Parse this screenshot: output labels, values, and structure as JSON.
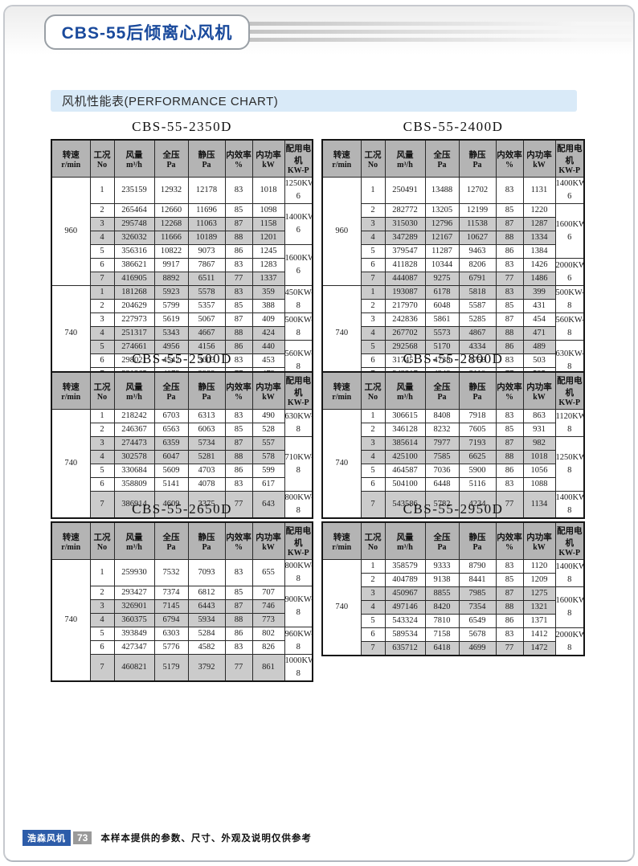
{
  "header": {
    "title": "CBS-55后倾离心风机"
  },
  "section": {
    "title": "风机性能表(PERFORMANCE CHART)"
  },
  "table_headers": [
    {
      "line1": "转速",
      "line2": "r/min"
    },
    {
      "line1": "工况",
      "line2": "No"
    },
    {
      "line1": "风量",
      "line2": "m³/h"
    },
    {
      "line1": "全压",
      "line2": "Pa"
    },
    {
      "line1": "静压",
      "line2": "Pa"
    },
    {
      "line1": "内效率",
      "line2": "%"
    },
    {
      "line1": "内功率",
      "line2": "kW"
    },
    {
      "line1": "配用电机",
      "line2": "KW-P"
    }
  ],
  "tables": [
    {
      "title": "CBS-55-2350D",
      "sections": [
        {
          "speed": "960",
          "rows": [
            [
              "1",
              "235159",
              "12932",
              "12178",
              "83",
              "1018"
            ],
            [
              "2",
              "265464",
              "12660",
              "11696",
              "85",
              "1098"
            ],
            [
              "3",
              "295748",
              "12268",
              "11063",
              "87",
              "1158"
            ],
            [
              "4",
              "326032",
              "11666",
              "10189",
              "88",
              "1201"
            ],
            [
              "5",
              "356316",
              "10822",
              "9073",
              "86",
              "1245"
            ],
            [
              "6",
              "386621",
              "9917",
              "7867",
              "83",
              "1283"
            ],
            [
              "7",
              "416905",
              "8892",
              "6511",
              "77",
              "1337"
            ]
          ],
          "motors": [
            {
              "label": "1250KW-6",
              "span": 1
            },
            {
              "label": "1400KW-6",
              "span": 3
            },
            {
              "label": "1600KW-6",
              "span": 3
            }
          ]
        },
        {
          "speed": "740",
          "rows": [
            [
              "1",
              "181268",
              "5923",
              "5578",
              "83",
              "359"
            ],
            [
              "2",
              "204629",
              "5799",
              "5357",
              "85",
              "388"
            ],
            [
              "3",
              "227973",
              "5619",
              "5067",
              "87",
              "409"
            ],
            [
              "4",
              "251317",
              "5343",
              "4667",
              "88",
              "424"
            ],
            [
              "5",
              "274661",
              "4956",
              "4156",
              "86",
              "440"
            ],
            [
              "6",
              "298021",
              "4542",
              "3603",
              "83",
              "453"
            ],
            [
              "7",
              "321365",
              "4073",
              "2982",
              "77",
              "472"
            ]
          ],
          "motors": [
            {
              "label": "450KW-8",
              "span": 2
            },
            {
              "label": "500KW-8",
              "span": 2
            },
            {
              "label": "560KW-8",
              "span": 3
            }
          ]
        }
      ]
    },
    {
      "title": "CBS-55-2400D",
      "sections": [
        {
          "speed": "960",
          "rows": [
            [
              "1",
              "250491",
              "13488",
              "12702",
              "83",
              "1131"
            ],
            [
              "2",
              "282772",
              "13205",
              "12199",
              "85",
              "1220"
            ],
            [
              "3",
              "315030",
              "12796",
              "11538",
              "87",
              "1287"
            ],
            [
              "4",
              "347289",
              "12167",
              "10627",
              "88",
              "1334"
            ],
            [
              "5",
              "379547",
              "11287",
              "9463",
              "86",
              "1384"
            ],
            [
              "6",
              "411828",
              "10344",
              "8206",
              "83",
              "1426"
            ],
            [
              "7",
              "444087",
              "9275",
              "6791",
              "77",
              "1486"
            ]
          ],
          "motors": [
            {
              "label": "1400KW-6",
              "span": 1
            },
            {
              "label": "1600KW-6",
              "span": 4
            },
            {
              "label": "2000KW-6",
              "span": 2
            }
          ]
        },
        {
          "speed": "740",
          "rows": [
            [
              "1",
              "193087",
              "6178",
              "5818",
              "83",
              "399"
            ],
            [
              "2",
              "217970",
              "6048",
              "5587",
              "85",
              "431"
            ],
            [
              "3",
              "242836",
              "5861",
              "5285",
              "87",
              "454"
            ],
            [
              "4",
              "267702",
              "5573",
              "4867",
              "88",
              "471"
            ],
            [
              "5",
              "292568",
              "5170",
              "4334",
              "86",
              "489"
            ],
            [
              "6",
              "317451",
              "4738",
              "3758",
              "83",
              "503"
            ],
            [
              "7",
              "342317",
              "4248",
              "3110",
              "77",
              "525"
            ]
          ],
          "motors": [
            {
              "label": "500KW-8",
              "span": 2
            },
            {
              "label": "560KW-8",
              "span": 2
            },
            {
              "label": "630KW-8",
              "span": 3
            }
          ]
        }
      ]
    },
    {
      "title": "CBS-55-2500D",
      "sections": [
        {
          "speed": "740",
          "rows": [
            [
              "1",
              "218242",
              "6703",
              "6313",
              "83",
              "490"
            ],
            [
              "2",
              "246367",
              "6563",
              "6063",
              "85",
              "528"
            ],
            [
              "3",
              "274473",
              "6359",
              "5734",
              "87",
              "557"
            ],
            [
              "4",
              "302578",
              "6047",
              "5281",
              "88",
              "578"
            ],
            [
              "5",
              "330684",
              "5609",
              "4703",
              "86",
              "599"
            ],
            [
              "6",
              "358809",
              "5141",
              "4078",
              "83",
              "617"
            ],
            [
              "7",
              "386914",
              "4609",
              "3375",
              "77",
              "643"
            ]
          ],
          "motors": [
            {
              "label": "630KW-8",
              "span": 2
            },
            {
              "label": "710KW-8",
              "span": 4
            },
            {
              "label": "800KW-8",
              "span": 1
            }
          ]
        }
      ]
    },
    {
      "title": "CBS-55-2800D",
      "sections": [
        {
          "speed": "740",
          "rows": [
            [
              "1",
              "306615",
              "8408",
              "7918",
              "83",
              "863"
            ],
            [
              "2",
              "346128",
              "8232",
              "7605",
              "85",
              "931"
            ],
            [
              "3",
              "385614",
              "7977",
              "7193",
              "87",
              "982"
            ],
            [
              "4",
              "425100",
              "7585",
              "6625",
              "88",
              "1018"
            ],
            [
              "5",
              "464587",
              "7036",
              "5900",
              "86",
              "1056"
            ],
            [
              "6",
              "504100",
              "6448",
              "5116",
              "83",
              "1088"
            ],
            [
              "7",
              "543586",
              "5782",
              "4234",
              "77",
              "1134"
            ]
          ],
          "motors": [
            {
              "label": "1120KW-8",
              "span": 2
            },
            {
              "label": "1250KW-8",
              "span": 4
            },
            {
              "label": "1400KW-8",
              "span": 1
            }
          ]
        }
      ]
    },
    {
      "title": "CBS-55-2650D",
      "sections": [
        {
          "speed": "740",
          "rows": [
            [
              "1",
              "259930",
              "7532",
              "7093",
              "83",
              "655"
            ],
            [
              "2",
              "293427",
              "7374",
              "6812",
              "85",
              "707"
            ],
            [
              "3",
              "326901",
              "7145",
              "6443",
              "87",
              "746"
            ],
            [
              "4",
              "360375",
              "6794",
              "5934",
              "88",
              "773"
            ],
            [
              "5",
              "393849",
              "6303",
              "5284",
              "86",
              "802"
            ],
            [
              "6",
              "427347",
              "5776",
              "4582",
              "83",
              "826"
            ],
            [
              "7",
              "460821",
              "5179",
              "3792",
              "77",
              "861"
            ]
          ],
          "motors": [
            {
              "label": "800KW-8",
              "span": 1
            },
            {
              "label": "900KW-8",
              "span": 3
            },
            {
              "label": "960KW-8",
              "span": 2
            },
            {
              "label": "1000KW-8",
              "span": 1
            }
          ]
        }
      ]
    },
    {
      "title": "CBS-55-2950D",
      "sections": [
        {
          "speed": "740",
          "rows": [
            [
              "1",
              "358579",
              "9333",
              "8790",
              "83",
              "1120"
            ],
            [
              "2",
              "404789",
              "9138",
              "8441",
              "85",
              "1209"
            ],
            [
              "3",
              "450967",
              "8855",
              "7985",
              "87",
              "1275"
            ],
            [
              "4",
              "497146",
              "8420",
              "7354",
              "88",
              "1321"
            ],
            [
              "5",
              "543324",
              "7810",
              "6549",
              "86",
              "1371"
            ],
            [
              "6",
              "589534",
              "7158",
              "5678",
              "83",
              "1412"
            ],
            [
              "7",
              "635712",
              "6418",
              "4699",
              "77",
              "1472"
            ]
          ],
          "motors": [
            {
              "label": "1400KW-8",
              "span": 2
            },
            {
              "label": "1600KW-8",
              "span": 3
            },
            {
              "label": "2000KW-8",
              "span": 2
            }
          ]
        }
      ]
    }
  ],
  "footer": {
    "brand": "浩森风机",
    "page_number": "73",
    "disclaimer": "本样本提供的参数、尺寸、外观及说明仅供参考"
  },
  "colors": {
    "accent_blue": "#1a4a9c",
    "band_blue": "#d9eaf8",
    "table_header_gray": "#b4b4b4",
    "row_shade_gray": "#cbcbcb",
    "brand_badge_blue": "#2d5ca9",
    "page_badge_gray": "#9a9a9a"
  }
}
